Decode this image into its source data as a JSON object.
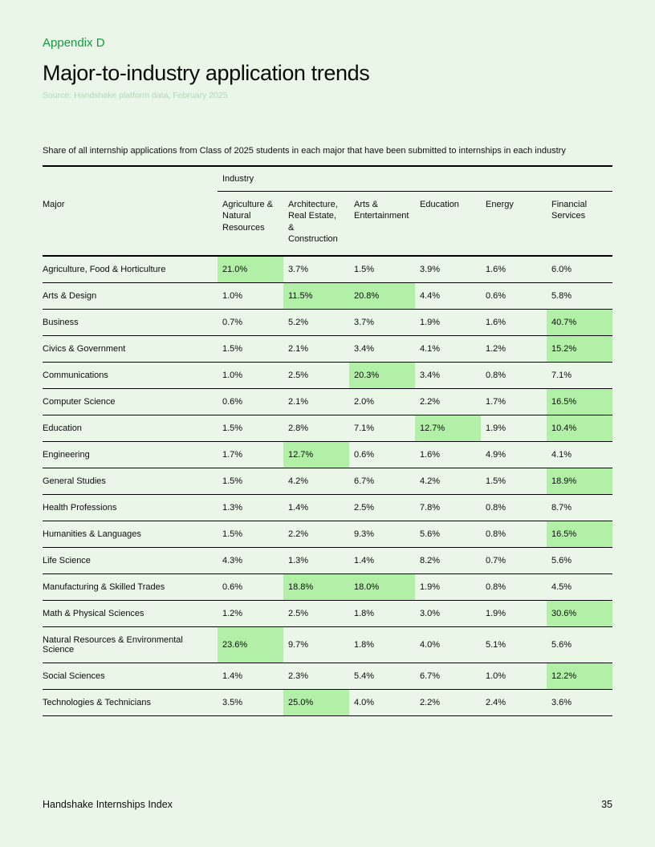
{
  "header": {
    "appendix_label": "Appendix D",
    "title": "Major-to-industry application trends",
    "source": "Source: Handshake platform data, February 2025"
  },
  "description": "Share of all internship applications from Class of 2025 students in each major that have been submitted to internships in each industry",
  "chart_data": {
    "type": "table",
    "group_header": "Industry",
    "row_header": "Major",
    "columns": [
      "Agriculture & Natural Resources",
      "Architecture, Real Estate, & Construction",
      "Arts & Entertainment",
      "Education",
      "Energy",
      "Financial Services"
    ],
    "rows": [
      {
        "major": "Agriculture, Food & Horticulture",
        "values": [
          "21.0%",
          "3.7%",
          "1.5%",
          "3.9%",
          "1.6%",
          "6.0%"
        ],
        "highlight": [
          0
        ]
      },
      {
        "major": "Arts & Design",
        "values": [
          "1.0%",
          "11.5%",
          "20.8%",
          "4.4%",
          "0.6%",
          "5.8%"
        ],
        "highlight": [
          1,
          2
        ]
      },
      {
        "major": "Business",
        "values": [
          "0.7%",
          "5.2%",
          "3.7%",
          "1.9%",
          "1.6%",
          "40.7%"
        ],
        "highlight": [
          5
        ]
      },
      {
        "major": "Civics & Government",
        "values": [
          "1.5%",
          "2.1%",
          "3.4%",
          "4.1%",
          "1.2%",
          "15.2%"
        ],
        "highlight": [
          5
        ]
      },
      {
        "major": "Communications",
        "values": [
          "1.0%",
          "2.5%",
          "20.3%",
          "3.4%",
          "0.8%",
          "7.1%"
        ],
        "highlight": [
          2
        ]
      },
      {
        "major": "Computer Science",
        "values": [
          "0.6%",
          "2.1%",
          "2.0%",
          "2.2%",
          "1.7%",
          "16.5%"
        ],
        "highlight": [
          5
        ]
      },
      {
        "major": "Education",
        "values": [
          "1.5%",
          "2.8%",
          "7.1%",
          "12.7%",
          "1.9%",
          "10.4%"
        ],
        "highlight": [
          3,
          5
        ]
      },
      {
        "major": "Engineering",
        "values": [
          "1.7%",
          "12.7%",
          "0.6%",
          "1.6%",
          "4.9%",
          "4.1%"
        ],
        "highlight": [
          1
        ]
      },
      {
        "major": "General Studies",
        "values": [
          "1.5%",
          "4.2%",
          "6.7%",
          "4.2%",
          "1.5%",
          "18.9%"
        ],
        "highlight": [
          5
        ]
      },
      {
        "major": "Health Professions",
        "values": [
          "1.3%",
          "1.4%",
          "2.5%",
          "7.8%",
          "0.8%",
          "8.7%"
        ],
        "highlight": []
      },
      {
        "major": "Humanities & Languages",
        "values": [
          "1.5%",
          "2.2%",
          "9.3%",
          "5.6%",
          "0.8%",
          "16.5%"
        ],
        "highlight": [
          5
        ]
      },
      {
        "major": "Life Science",
        "values": [
          "4.3%",
          "1.3%",
          "1.4%",
          "8.2%",
          "0.7%",
          "5.6%"
        ],
        "highlight": []
      },
      {
        "major": "Manufacturing & Skilled Trades",
        "values": [
          "0.6%",
          "18.8%",
          "18.0%",
          "1.9%",
          "0.8%",
          "4.5%"
        ],
        "highlight": [
          1,
          2
        ]
      },
      {
        "major": "Math & Physical Sciences",
        "values": [
          "1.2%",
          "2.5%",
          "1.8%",
          "3.0%",
          "1.9%",
          "30.6%"
        ],
        "highlight": [
          5
        ]
      },
      {
        "major": "Natural Resources & Environmental Science",
        "values": [
          "23.6%",
          "9.7%",
          "1.8%",
          "4.0%",
          "5.1%",
          "5.6%"
        ],
        "highlight": [
          0
        ]
      },
      {
        "major": "Social Sciences",
        "values": [
          "1.4%",
          "2.3%",
          "5.4%",
          "6.7%",
          "1.0%",
          "12.2%"
        ],
        "highlight": [
          5
        ]
      },
      {
        "major": "Technologies & Technicians",
        "values": [
          "3.5%",
          "25.0%",
          "4.0%",
          "2.2%",
          "2.4%",
          "3.6%"
        ],
        "highlight": [
          1
        ]
      }
    ]
  },
  "footer": {
    "left": "Handshake Internships Index",
    "page": "35"
  },
  "colors": {
    "background": "#e9f6e8",
    "accent_green": "#149b41",
    "highlight_green": "#b2f0a8",
    "source_muted": "#b2d8ba",
    "border": "#000000"
  }
}
